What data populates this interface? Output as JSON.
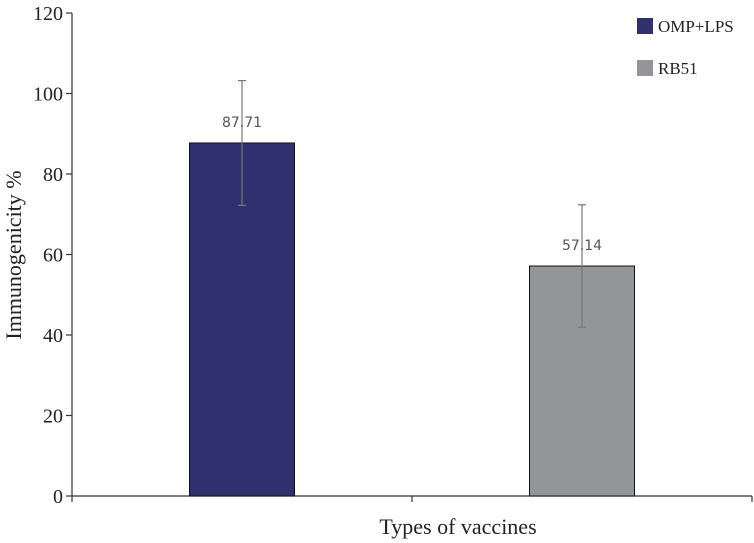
{
  "chart_data": {
    "type": "bar",
    "categories": [
      "OMP+LPS",
      "RB51"
    ],
    "values": [
      87.71,
      57.14
    ],
    "error": [
      15.5,
      15.2
    ],
    "data_labels": [
      "87.71",
      "57.14"
    ],
    "xlabel": "Types of vaccines",
    "ylabel": "Immunogenicity %",
    "ylim": [
      0,
      120
    ],
    "yticks": [
      0,
      20,
      40,
      60,
      80,
      100,
      120
    ],
    "ytick_labels": [
      "0",
      "20",
      "40",
      "60",
      "80",
      "100",
      "120"
    ],
    "grid": false,
    "legend": {
      "placement": "top-right",
      "entries": [
        {
          "label": "OMP+LPS",
          "color": "#30306e"
        },
        {
          "label": "RB51",
          "color": "#939598"
        }
      ]
    },
    "colors": [
      "#30306e",
      "#939598"
    ]
  }
}
